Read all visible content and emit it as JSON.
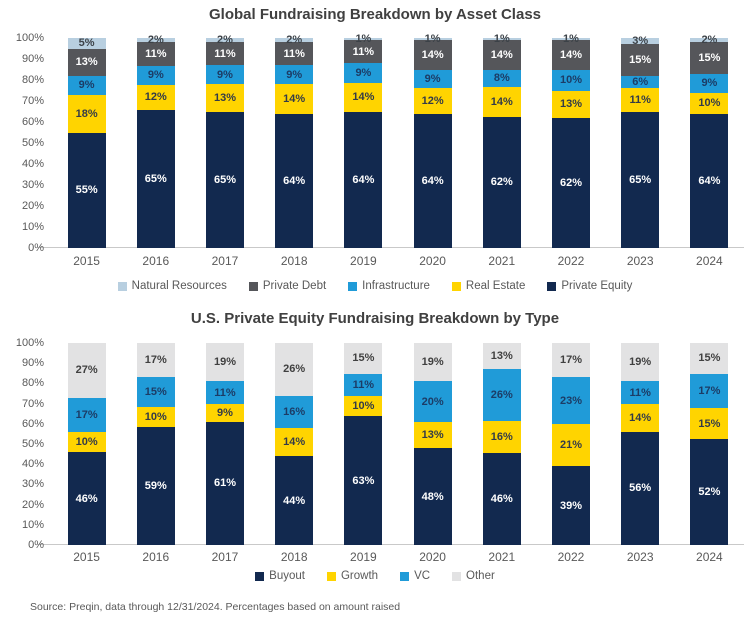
{
  "page": {
    "source_note": "Source: Preqin, data through 12/31/2024. Percentages based on amount raised"
  },
  "colors": {
    "navy": "#12294F",
    "yellow": "#FFD400",
    "blue": "#209BD8",
    "dark_gray": "#55565A",
    "light_blue": "#B8CFE0",
    "light_gray": "#E2E2E3",
    "axis_text": "#595959",
    "title_text": "#404040"
  },
  "chart_data": [
    {
      "type": "bar",
      "stacked": true,
      "title": "Global Fundraising Breakdown by Asset Class",
      "categories": [
        "2015",
        "2016",
        "2017",
        "2018",
        "2019",
        "2020",
        "2021",
        "2022",
        "2023",
        "2024"
      ],
      "ylim": [
        0,
        100
      ],
      "yticks": [
        "0%",
        "10%",
        "20%",
        "30%",
        "40%",
        "50%",
        "60%",
        "70%",
        "80%",
        "90%",
        "100%"
      ],
      "grid": false,
      "legend_position": "bottom",
      "series": [
        {
          "name": "Private Equity",
          "color": "#12294F",
          "label_color": "#FFFFFF",
          "values": [
            55,
            65,
            65,
            64,
            64,
            64,
            62,
            62,
            65,
            64
          ]
        },
        {
          "name": "Real Estate",
          "color": "#FFD400",
          "label_color": "#333B48",
          "values": [
            18,
            12,
            13,
            14,
            14,
            12,
            14,
            13,
            11,
            10
          ]
        },
        {
          "name": "Infrastructure",
          "color": "#209BD8",
          "label_color": "#1C3C66",
          "values": [
            9,
            9,
            9,
            9,
            9,
            9,
            8,
            10,
            6,
            9
          ]
        },
        {
          "name": "Private Debt",
          "color": "#55565A",
          "label_color": "#FFFFFF",
          "values": [
            13,
            11,
            11,
            11,
            11,
            14,
            14,
            14,
            15,
            15
          ]
        },
        {
          "name": "Natural Resources",
          "color": "#B8CFE0",
          "label_color": "#3C4248",
          "values": [
            5,
            2,
            2,
            2,
            1,
            1,
            1,
            1,
            3,
            2
          ]
        }
      ],
      "legend": [
        "Natural Resources",
        "Private Debt",
        "Infrastructure",
        "Real Estate",
        "Private Equity"
      ]
    },
    {
      "type": "bar",
      "stacked": true,
      "title": "U.S. Private Equity Fundraising Breakdown by Type",
      "categories": [
        "2015",
        "2016",
        "2017",
        "2018",
        "2019",
        "2020",
        "2021",
        "2022",
        "2023",
        "2024"
      ],
      "ylim": [
        0,
        100
      ],
      "yticks": [
        "0%",
        "10%",
        "20%",
        "30%",
        "40%",
        "50%",
        "60%",
        "70%",
        "80%",
        "90%",
        "100%"
      ],
      "grid": false,
      "legend_position": "bottom",
      "series": [
        {
          "name": "Buyout",
          "color": "#12294F",
          "label_color": "#FFFFFF",
          "values": [
            46,
            59,
            61,
            44,
            63,
            48,
            46,
            39,
            56,
            52
          ]
        },
        {
          "name": "Growth",
          "color": "#FFD400",
          "label_color": "#333B48",
          "values": [
            10,
            10,
            9,
            14,
            10,
            13,
            16,
            21,
            14,
            15
          ]
        },
        {
          "name": "VC",
          "color": "#209BD8",
          "label_color": "#1C3C66",
          "values": [
            17,
            15,
            11,
            16,
            11,
            20,
            26,
            23,
            11,
            17
          ]
        },
        {
          "name": "Other",
          "color": "#E2E2E3",
          "label_color": "#404040",
          "values": [
            27,
            17,
            19,
            26,
            15,
            19,
            13,
            17,
            19,
            15
          ]
        }
      ],
      "legend": [
        "Buyout",
        "Growth",
        "VC",
        "Other"
      ]
    }
  ]
}
